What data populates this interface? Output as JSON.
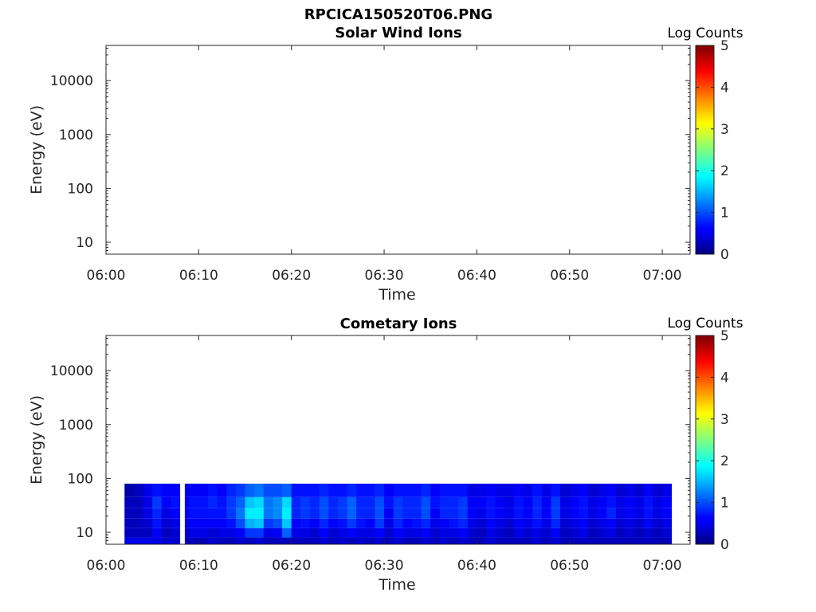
{
  "figure_title": "RPCICA150520T06.PNG",
  "chart_data": [
    {
      "type": "heatmap",
      "title": "Solar Wind Ions",
      "xlabel": "Time",
      "ylabel": "Energy (eV)",
      "x_ticks": [
        "06:00",
        "06:10",
        "06:20",
        "06:30",
        "06:40",
        "06:50",
        "07:00"
      ],
      "xlim": [
        "06:00",
        "07:03"
      ],
      "y_scale": "log",
      "ylim": [
        6,
        45000
      ],
      "y_tick_values": [
        10,
        100,
        1000,
        10000
      ],
      "y_ticks": [
        "10",
        "100",
        "1000",
        "10000"
      ],
      "colorbar": {
        "label": "Log Counts",
        "range": [
          0,
          5
        ],
        "ticks": [
          "0",
          "1",
          "2",
          "3",
          "4",
          "5"
        ],
        "colormap": "jet"
      },
      "grid": false,
      "time_bins": [],
      "energy_rows": [],
      "log_counts": []
    },
    {
      "type": "heatmap",
      "title": "Cometary Ions",
      "xlabel": "Time",
      "ylabel": "Energy (eV)",
      "x_ticks": [
        "06:00",
        "06:10",
        "06:20",
        "06:30",
        "06:40",
        "06:50",
        "07:00"
      ],
      "xlim": [
        "06:00",
        "07:03"
      ],
      "y_scale": "log",
      "ylim": [
        6,
        45000
      ],
      "y_tick_values": [
        10,
        100,
        1000,
        10000
      ],
      "y_ticks": [
        "10",
        "100",
        "1000",
        "10000"
      ],
      "colorbar": {
        "label": "Log Counts",
        "range": [
          0,
          5
        ],
        "ticks": [
          "0",
          "1",
          "2",
          "3",
          "4",
          "5"
        ],
        "colormap": "jet"
      },
      "grid": false,
      "time_bins": [
        "06:02",
        "06:03",
        "06:04",
        "06:05",
        "06:06",
        "06:07",
        "06:08",
        "06:09",
        "06:10",
        "06:11",
        "06:12",
        "06:13",
        "06:14",
        "06:15",
        "06:16",
        "06:17",
        "06:18",
        "06:19",
        "06:20",
        "06:21",
        "06:22",
        "06:23",
        "06:24",
        "06:25",
        "06:26",
        "06:27",
        "06:28",
        "06:29",
        "06:30",
        "06:31",
        "06:32",
        "06:33",
        "06:34",
        "06:35",
        "06:36",
        "06:37",
        "06:38",
        "06:39",
        "06:40",
        "06:41",
        "06:42",
        "06:43",
        "06:44",
        "06:45",
        "06:46",
        "06:47",
        "06:48",
        "06:49",
        "06:50",
        "06:51",
        "06:52",
        "06:53",
        "06:54",
        "06:55",
        "06:56",
        "06:57",
        "06:58",
        "06:59",
        "07:00"
      ],
      "time_bin_end": "07:01",
      "energy_rows": [
        {
          "low": 6,
          "high": 8
        },
        {
          "low": 8,
          "high": 12
        },
        {
          "low": 12,
          "high": 18
        },
        {
          "low": 18,
          "high": 28
        },
        {
          "low": 28,
          "high": 45
        },
        {
          "low": 45,
          "high": 80
        }
      ],
      "log_counts": [
        [
          0.5,
          0.5,
          0.5,
          0.5,
          0.4,
          0.4,
          0.3,
          0.3,
          0.3,
          0.4,
          0.3,
          0.3,
          0.4,
          0.3,
          0.4,
          0.3,
          0.3,
          0.3,
          0.3,
          0.3,
          0.3,
          0.4,
          0.3,
          0.4,
          0.3,
          0.4,
          0.3,
          0.4,
          0.3,
          0.4,
          0.3,
          0.3,
          0.4,
          0.3,
          0.4,
          0.3,
          0.4,
          0.3,
          0.3,
          0.4,
          0.3,
          0.3,
          0.3,
          0.3,
          0.4,
          0.3,
          0.4,
          0.3,
          0.3,
          0.3,
          0.3,
          0.3,
          0.3,
          0.3,
          0.3,
          0.3,
          0.3,
          0.3,
          0.3
        ],
        [
          0.3,
          0.3,
          0.3,
          0.6,
          0.3,
          0.4,
          0.4,
          0.5,
          0.5,
          0.4,
          0.5,
          0.5,
          0.6,
          0.9,
          0.9,
          0.5,
          0.6,
          1.1,
          0.5,
          0.5,
          0.4,
          0.6,
          0.4,
          0.5,
          0.6,
          0.5,
          0.5,
          0.6,
          0.4,
          0.6,
          0.5,
          0.5,
          0.6,
          0.4,
          0.5,
          0.5,
          0.6,
          0.4,
          0.3,
          0.5,
          0.4,
          0.3,
          0.5,
          0.4,
          0.5,
          0.4,
          0.6,
          0.3,
          0.4,
          0.5,
          0.3,
          0.4,
          0.5,
          0.3,
          0.4,
          0.3,
          0.4,
          0.3,
          0.4
        ],
        [
          0.3,
          0.3,
          0.4,
          0.7,
          0.4,
          0.5,
          0.5,
          0.6,
          0.6,
          0.6,
          0.6,
          0.7,
          1.0,
          1.5,
          1.6,
          0.9,
          1.0,
          1.6,
          0.6,
          0.7,
          0.6,
          0.8,
          0.6,
          0.7,
          0.9,
          0.7,
          0.6,
          0.9,
          0.5,
          0.8,
          0.6,
          0.7,
          0.8,
          0.5,
          0.6,
          0.7,
          0.8,
          0.5,
          0.4,
          0.6,
          0.5,
          0.4,
          0.6,
          0.5,
          0.7,
          0.5,
          0.8,
          0.4,
          0.5,
          0.6,
          0.4,
          0.5,
          0.6,
          0.4,
          0.5,
          0.4,
          0.6,
          0.4,
          0.5
        ],
        [
          0.3,
          0.3,
          0.5,
          0.8,
          0.5,
          0.6,
          0.6,
          0.7,
          0.7,
          0.7,
          0.7,
          0.9,
          1.2,
          1.8,
          1.8,
          1.2,
          1.3,
          1.8,
          0.8,
          0.9,
          0.8,
          1.0,
          0.8,
          0.9,
          1.1,
          0.8,
          0.8,
          1.0,
          0.6,
          0.9,
          0.8,
          0.8,
          1.0,
          0.6,
          0.8,
          0.8,
          0.9,
          0.6,
          0.5,
          0.7,
          0.6,
          0.5,
          0.7,
          0.6,
          0.8,
          0.6,
          0.9,
          0.5,
          0.6,
          0.7,
          0.5,
          0.6,
          0.8,
          0.5,
          0.6,
          0.5,
          0.7,
          0.5,
          0.6
        ],
        [
          0.3,
          0.3,
          0.5,
          0.9,
          0.6,
          0.7,
          0.6,
          0.7,
          0.7,
          0.8,
          0.7,
          0.9,
          1.1,
          1.6,
          1.7,
          1.2,
          1.3,
          1.7,
          0.8,
          0.9,
          0.8,
          1.0,
          0.8,
          0.9,
          1.1,
          0.8,
          0.8,
          1.0,
          0.7,
          0.9,
          0.8,
          0.8,
          1.0,
          0.7,
          0.8,
          0.8,
          0.9,
          0.6,
          0.6,
          0.7,
          0.6,
          0.5,
          0.7,
          0.6,
          0.8,
          0.6,
          0.9,
          0.5,
          0.6,
          0.7,
          0.5,
          0.6,
          0.7,
          0.5,
          0.6,
          0.5,
          0.7,
          0.5,
          0.6
        ],
        [
          0.2,
          0.3,
          0.5,
          0.7,
          0.6,
          0.6,
          0.5,
          0.6,
          0.6,
          0.7,
          0.6,
          0.8,
          0.9,
          1.1,
          1.2,
          1.0,
          1.0,
          1.1,
          0.7,
          0.7,
          0.7,
          0.8,
          0.7,
          0.7,
          0.8,
          0.7,
          0.7,
          0.8,
          0.6,
          0.7,
          0.7,
          0.7,
          0.8,
          0.6,
          0.7,
          0.7,
          0.7,
          0.5,
          0.5,
          0.6,
          0.5,
          0.5,
          0.6,
          0.5,
          0.7,
          0.5,
          0.7,
          0.4,
          0.5,
          0.6,
          0.4,
          0.5,
          0.6,
          0.4,
          0.5,
          0.4,
          0.6,
          0.4,
          0.5
        ]
      ],
      "gaps": [
        {
          "from": "06:08",
          "to": "06:08:30"
        }
      ]
    }
  ]
}
